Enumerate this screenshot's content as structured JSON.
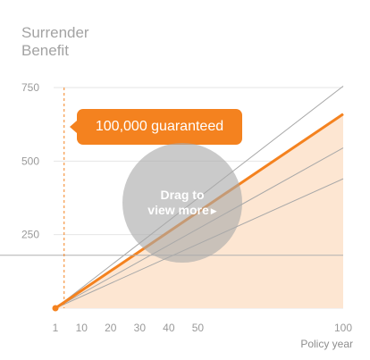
{
  "title": {
    "line1": "Surrender",
    "line2": "Benefit"
  },
  "callout": {
    "text": "100,000 guaranteed"
  },
  "drag_hint": {
    "line1": "Drag to",
    "line2": "view more",
    "arrow_icon": "play-triangle-icon"
  },
  "colors": {
    "accent": "#f4821f",
    "fill": "#fde6d2",
    "gray_line": "#a8a8a8",
    "grid": "#e6e6e6",
    "guaranteed_line": "#b0b0b0"
  },
  "chart_data": {
    "type": "line",
    "xlabel": "Policy year",
    "ylabel": "",
    "x_ticks": [
      1,
      10,
      20,
      30,
      40,
      50,
      100
    ],
    "y_ticks": [
      250,
      500,
      750
    ],
    "xlim": [
      1,
      100
    ],
    "ylim": [
      0,
      820
    ],
    "grid": true,
    "reference_x": 4,
    "guaranteed_level": 180,
    "series": [
      {
        "kind": "area",
        "x": [
          1,
          100
        ],
        "y": [
          0,
          660
        ]
      },
      {
        "kind": "gray",
        "x": [
          1,
          100
        ],
        "y": [
          0,
          755
        ]
      },
      {
        "kind": "gray",
        "x": [
          1,
          100
        ],
        "y": [
          0,
          545
        ]
      },
      {
        "kind": "gray",
        "x": [
          1,
          100
        ],
        "y": [
          0,
          440
        ]
      },
      {
        "kind": "accent",
        "x": [
          1,
          100
        ],
        "y": [
          0,
          660
        ]
      }
    ]
  }
}
